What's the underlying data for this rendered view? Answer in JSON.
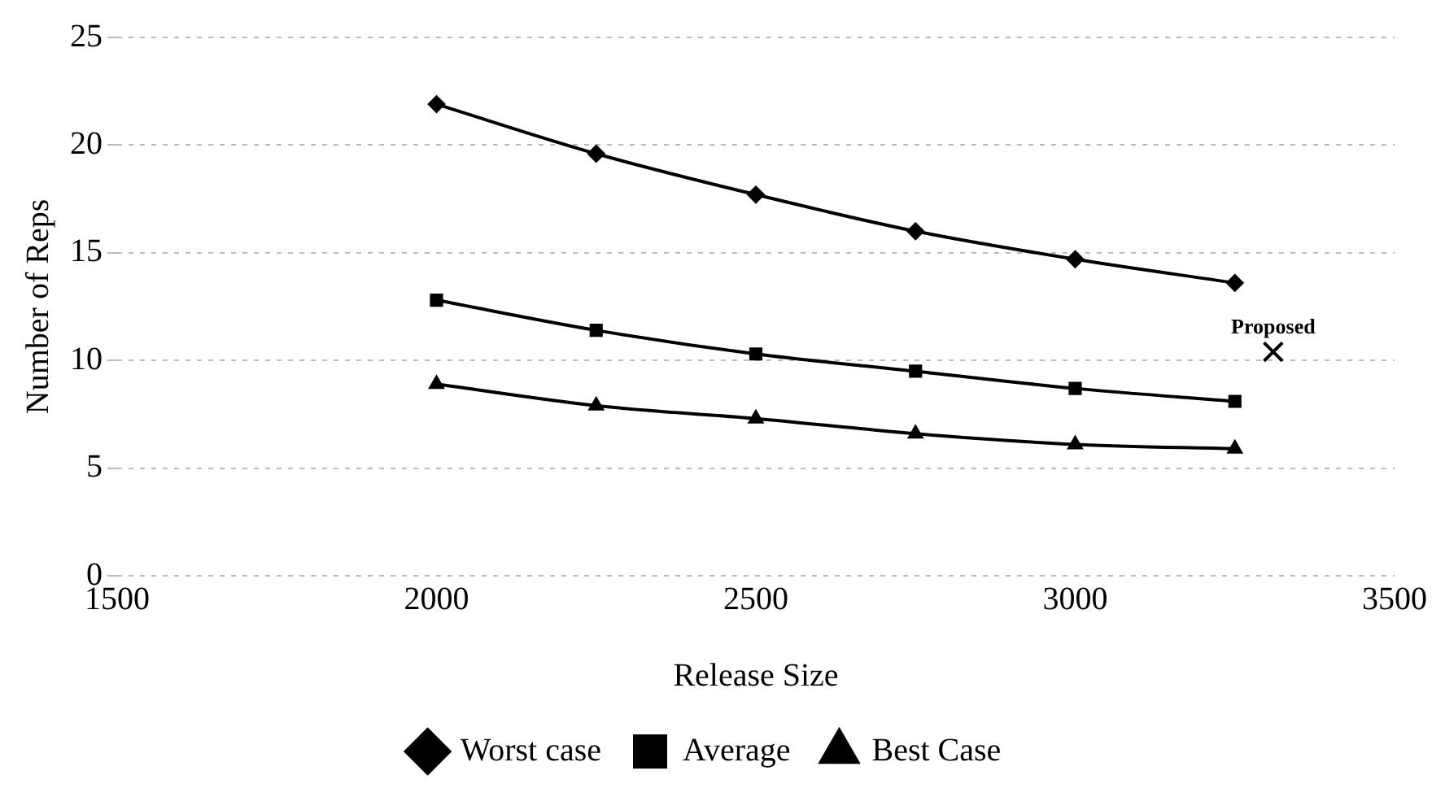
{
  "chart_data": {
    "type": "line",
    "xlabel": "Release Size",
    "ylabel": "Number of Reps",
    "x": [
      2000,
      2250,
      2500,
      2750,
      3000,
      3250
    ],
    "series": [
      {
        "name": "Worst case",
        "color": "#000000",
        "marker": "diamond",
        "values": [
          21.9,
          19.6,
          17.7,
          16.0,
          14.7,
          13.6
        ]
      },
      {
        "name": "Average",
        "color": "#000000",
        "marker": "square",
        "values": [
          12.8,
          11.4,
          10.3,
          9.5,
          8.7,
          8.1
        ]
      },
      {
        "name": "Best Case",
        "color": "#000000",
        "marker": "triangle",
        "values": [
          8.9,
          7.9,
          7.3,
          6.6,
          6.1,
          5.9
        ]
      },
      {
        "type": "scatter",
        "color": "#000000",
        "marker": "cross",
        "x": [
          3310
        ],
        "values": [
          10.4
        ]
      }
    ],
    "annotations": [
      {
        "text": "Proposed",
        "x": 3310,
        "y": 10.4
      }
    ],
    "xlim": [
      1500,
      3500
    ],
    "xticks": [
      1500,
      2000,
      2500,
      3000,
      3500
    ],
    "ylim": [
      0,
      25
    ],
    "yticks": [
      0,
      5,
      10,
      15,
      20,
      25
    ],
    "grid": "y",
    "legend": "bottom"
  }
}
